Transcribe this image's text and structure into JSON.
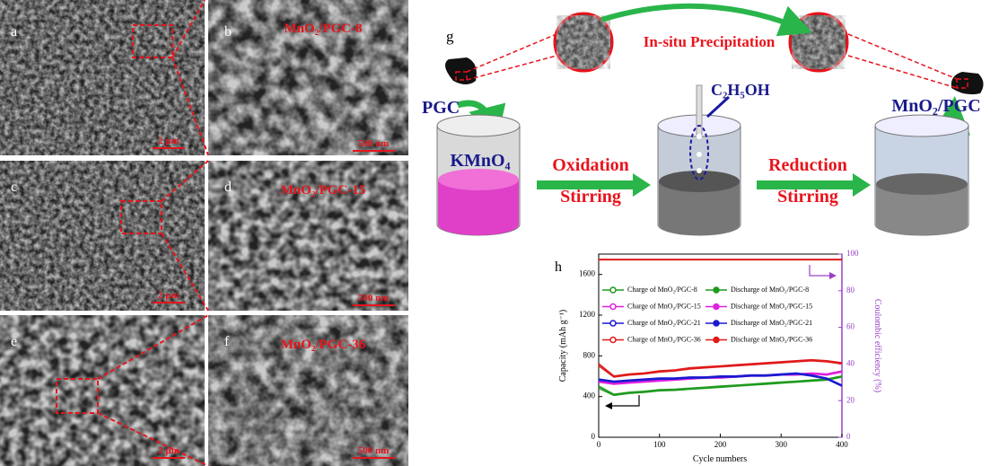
{
  "panels": [
    {
      "label": "a",
      "scale": "2 μm"
    },
    {
      "label": "b",
      "title": "MnO₂/PGC-8",
      "scale": "500 nm"
    },
    {
      "label": "c",
      "scale": "2 μm"
    },
    {
      "label": "d",
      "title": "MnO₂/PGC-15",
      "scale": "500 nm"
    },
    {
      "label": "e",
      "scale": "2 μm"
    },
    {
      "label": "f",
      "title": "MnO₂/PGC-36",
      "scale": "500 nm"
    }
  ],
  "schematic": {
    "label": "g",
    "precipitation": "In-situ Precipitation",
    "pgc": "PGC",
    "ethanol": "C₂H₅OH",
    "product": "MnO₂/PGC",
    "oxidant": "KMnO₄",
    "step1": [
      "Oxidation",
      "Stirring"
    ],
    "step2": [
      "Reduction",
      "Stirring"
    ]
  },
  "chart_data": {
    "type": "line",
    "panel_label": "h",
    "x_label": "Cycle numbers",
    "y_label": "Capacity (mAh g⁻¹)",
    "y2_label": "Coulombic efficiency (%)",
    "x": [
      0,
      25,
      50,
      75,
      100,
      125,
      150,
      175,
      200,
      225,
      250,
      275,
      300,
      325,
      350,
      375,
      400
    ],
    "xlim": [
      0,
      400
    ],
    "xticks": [
      0,
      100,
      200,
      300,
      400
    ],
    "ylim": [
      0,
      1800
    ],
    "yticks": [
      0,
      400,
      800,
      1200,
      1600
    ],
    "y2lim": [
      0,
      100
    ],
    "y2ticks": [
      0,
      20,
      40,
      60,
      80,
      100
    ],
    "series": [
      {
        "name": "Charge of MnO₂/PGC-8",
        "color": "#1f9a1f",
        "marker": "open",
        "values": [
          480,
          410,
          430,
          440,
          455,
          460,
          470,
          480,
          490,
          500,
          510,
          520,
          530,
          540,
          550,
          560,
          590
        ]
      },
      {
        "name": "Discharge of MnO₂/PGC-8",
        "color": "#1f9a1f",
        "marker": "filled",
        "values": [
          500,
          420,
          440,
          450,
          465,
          470,
          480,
          490,
          500,
          510,
          520,
          530,
          540,
          550,
          560,
          570,
          600
        ]
      },
      {
        "name": "Charge of MnO₂/PGC-15",
        "color": "#e020e0",
        "marker": "open",
        "values": [
          540,
          520,
          530,
          540,
          550,
          560,
          570,
          580,
          580,
          590,
          600,
          600,
          610,
          610,
          620,
          610,
          640
        ]
      },
      {
        "name": "Discharge of MnO₂/PGC-15",
        "color": "#e020e0",
        "marker": "filled",
        "values": [
          550,
          530,
          540,
          550,
          560,
          570,
          580,
          590,
          590,
          600,
          610,
          610,
          620,
          620,
          630,
          620,
          650
        ]
      },
      {
        "name": "Charge of MnO₂/PGC-21",
        "color": "#1a1ad0",
        "marker": "open",
        "values": [
          560,
          540,
          550,
          560,
          570,
          570,
          580,
          580,
          590,
          590,
          600,
          600,
          610,
          620,
          600,
          570,
          500
        ]
      },
      {
        "name": "Discharge of MnO₂/PGC-21",
        "color": "#1a1ad0",
        "marker": "filled",
        "values": [
          570,
          550,
          560,
          570,
          580,
          580,
          590,
          590,
          600,
          600,
          610,
          610,
          620,
          630,
          610,
          580,
          510
        ]
      },
      {
        "name": "Charge of MnO₂/PGC-36",
        "color": "#e01a1a",
        "marker": "open",
        "values": [
          700,
          590,
          610,
          620,
          640,
          650,
          670,
          680,
          690,
          700,
          710,
          720,
          730,
          740,
          750,
          740,
          720
        ]
      },
      {
        "name": "Discharge of MnO₂/PGC-36",
        "color": "#e01a1a",
        "marker": "filled",
        "values": [
          720,
          600,
          620,
          630,
          650,
          660,
          680,
          690,
          700,
          710,
          720,
          730,
          740,
          750,
          760,
          750,
          730
        ]
      },
      {
        "color": "#e01a1a",
        "axis": "y2",
        "values": [
          97,
          97,
          97,
          97,
          97,
          97,
          97,
          97,
          97,
          97,
          97,
          97,
          97,
          97,
          97,
          97,
          97
        ]
      }
    ]
  }
}
